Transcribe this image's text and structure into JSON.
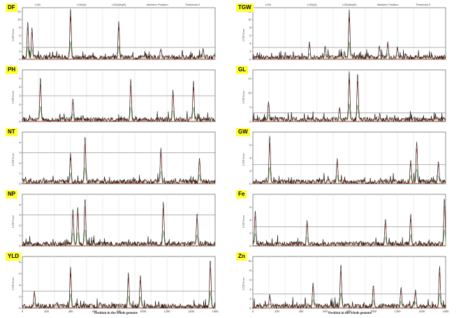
{
  "legend": {
    "items": [
      "LOD",
      "LOD(A)",
      "LOD(AbyE)",
      "Markers' Position",
      "Threshold 3"
    ],
    "colors": {
      "lod": "#111111",
      "lod_a": "#d41f1f",
      "lod_abye": "#2a8a2a",
      "threshold": "#666666",
      "markers": "#cc0000"
    }
  },
  "xlabel": "Position in the whole genome",
  "ylabel": "LOD Score",
  "chart_data": [
    {
      "type": "line",
      "panel": "DF",
      "ylim": [
        0,
        13
      ],
      "yticks": [
        0,
        2,
        4,
        6,
        8,
        10,
        12
      ],
      "threshold": 3,
      "peaks": [
        {
          "x": 45,
          "y": 9.5
        },
        {
          "x": 80,
          "y": 8
        },
        {
          "x": 400,
          "y": 12.7
        },
        {
          "x": 800,
          "y": 9.6
        },
        {
          "x": 1150,
          "y": 2.7
        },
        {
          "x": 1500,
          "y": 2.8
        }
      ]
    },
    {
      "type": "line",
      "panel": "TGW",
      "ylim": [
        0,
        13
      ],
      "yticks": [
        0,
        2,
        4,
        6,
        8,
        10,
        12
      ],
      "threshold": 3,
      "peaks": [
        {
          "x": 470,
          "y": 4.5
        },
        {
          "x": 600,
          "y": 3.5
        },
        {
          "x": 800,
          "y": 12.5
        },
        {
          "x": 1050,
          "y": 3.5
        },
        {
          "x": 1120,
          "y": 4.5
        },
        {
          "x": 1200,
          "y": 3.2
        }
      ]
    },
    {
      "type": "line",
      "panel": "PH",
      "ylim": [
        0,
        6
      ],
      "yticks": [
        0,
        1,
        2,
        3,
        4,
        5
      ],
      "threshold": 3,
      "peaks": [
        {
          "x": 150,
          "y": 5.2
        },
        {
          "x": 420,
          "y": 2.7
        },
        {
          "x": 900,
          "y": 5
        },
        {
          "x": 1250,
          "y": 3.7
        },
        {
          "x": 1420,
          "y": 4.8
        }
      ]
    },
    {
      "type": "line",
      "panel": "GL",
      "ylim": [
        0,
        18
      ],
      "yticks": [
        0,
        5,
        10,
        15
      ],
      "threshold": 3,
      "peaks": [
        {
          "x": 130,
          "y": 7
        },
        {
          "x": 720,
          "y": 5
        },
        {
          "x": 800,
          "y": 17.5
        },
        {
          "x": 870,
          "y": 17
        }
      ]
    },
    {
      "type": "line",
      "panel": "NT",
      "ylim": [
        0,
        5
      ],
      "yticks": [
        0,
        1,
        2,
        3,
        4
      ],
      "threshold": 3,
      "peaks": [
        {
          "x": 400,
          "y": 3
        },
        {
          "x": 520,
          "y": 4.7
        },
        {
          "x": 1150,
          "y": 3.5
        },
        {
          "x": 1470,
          "y": 2.5
        }
      ]
    },
    {
      "type": "line",
      "panel": "GW",
      "ylim": [
        0,
        8
      ],
      "yticks": [
        0,
        2,
        4,
        6
      ],
      "threshold": 3,
      "peaks": [
        {
          "x": 140,
          "y": 7.5
        },
        {
          "x": 700,
          "y": 4
        },
        {
          "x": 1310,
          "y": 3.7
        },
        {
          "x": 1360,
          "y": 6.5
        },
        {
          "x": 1540,
          "y": 3.5
        }
      ]
    },
    {
      "type": "line",
      "panel": "NP",
      "ylim": [
        0,
        5
      ],
      "yticks": [
        0,
        1,
        2,
        3,
        4
      ],
      "threshold": 3,
      "peaks": [
        {
          "x": 420,
          "y": 3.6
        },
        {
          "x": 460,
          "y": 3.8
        },
        {
          "x": 520,
          "y": 4.7
        },
        {
          "x": 1170,
          "y": 4.3
        },
        {
          "x": 1450,
          "y": 3.2
        }
      ]
    },
    {
      "type": "line",
      "panel": "Fe",
      "ylim": [
        0,
        8
      ],
      "yticks": [
        0,
        2,
        4,
        6
      ],
      "threshold": 3,
      "peaks": [
        {
          "x": 20,
          "y": 5.5
        },
        {
          "x": 450,
          "y": 4
        },
        {
          "x": 1100,
          "y": 4.2
        },
        {
          "x": 1310,
          "y": 5
        },
        {
          "x": 1590,
          "y": 7.5
        }
      ]
    },
    {
      "type": "line",
      "panel": "YLD",
      "ylim": [
        0,
        9
      ],
      "yticks": [
        0,
        2,
        4,
        6,
        8
      ],
      "threshold": 3,
      "peaks": [
        {
          "x": 100,
          "y": 3
        },
        {
          "x": 400,
          "y": 7.2
        },
        {
          "x": 880,
          "y": 6.2
        },
        {
          "x": 980,
          "y": 5.8
        },
        {
          "x": 1560,
          "y": 8.6
        }
      ]
    },
    {
      "type": "line",
      "panel": "Zn",
      "ylim": [
        0,
        11
      ],
      "yticks": [
        0,
        2,
        4,
        6,
        8,
        10
      ],
      "threshold": 3,
      "peaks": [
        {
          "x": 140,
          "y": 3
        },
        {
          "x": 500,
          "y": 5.5
        },
        {
          "x": 730,
          "y": 9.5
        },
        {
          "x": 1000,
          "y": 5
        },
        {
          "x": 1230,
          "y": 4.5
        },
        {
          "x": 1350,
          "y": 4
        },
        {
          "x": 1550,
          "y": 9
        }
      ]
    }
  ],
  "xaxis": {
    "range": [
      0,
      1600
    ],
    "ticks": [
      0,
      200,
      400,
      600,
      800,
      1000,
      1200,
      1400,
      1600
    ]
  }
}
